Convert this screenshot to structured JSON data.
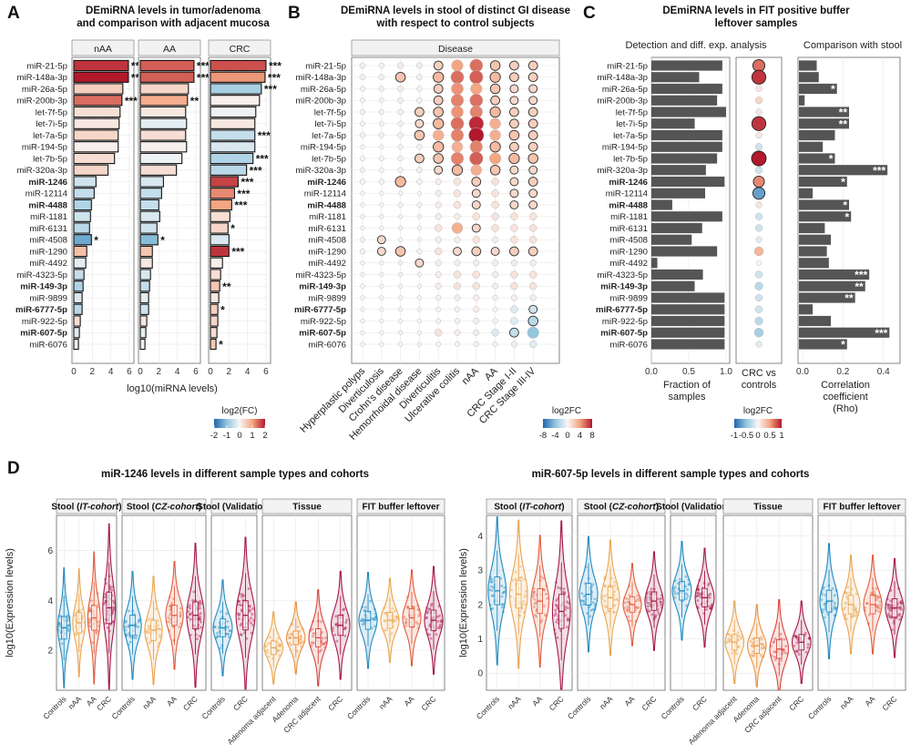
{
  "panel_labels": [
    "A",
    "B",
    "C",
    "D"
  ],
  "chart_data": [
    {
      "panel": "A",
      "type": "bar",
      "title": "DEmiRNA levels in tumor/adenoma\nand comparison with adjacent mucosa",
      "xlabel": "log10(miRNA levels)",
      "xlim": [
        0,
        6.3
      ],
      "xticks": [
        0,
        2,
        4,
        6
      ],
      "facets": [
        "nAA",
        "AA",
        "CRC"
      ],
      "categories": [
        "miR-21-5p",
        "miR-148a-3p",
        "miR-26a-5p",
        "miR-200b-3p",
        "let-7f-5p",
        "let-7i-5p",
        "let-7a-5p",
        "miR-194-5p",
        "let-7b-5p",
        "miR-320a-3p",
        "miR-1246",
        "miR-12114",
        "miR-4488",
        "miR-1181",
        "miR-6131",
        "miR-4508",
        "miR-1290",
        "miR-4492",
        "miR-4323-5p",
        "miR-149-3p",
        "miR-9899",
        "miR-6777-5p",
        "miR-922-5p",
        "miR-607-5p",
        "miR-6076"
      ],
      "bold_categories": [
        "miR-1246",
        "miR-4488",
        "miR-149-3p",
        "miR-6777-5p",
        "miR-607-5p"
      ],
      "series": [
        {
          "facet": "nAA",
          "values": [
            5.9,
            5.9,
            5.3,
            5.2,
            5.0,
            4.9,
            4.8,
            4.8,
            4.4,
            3.7,
            2.4,
            2.2,
            1.9,
            1.8,
            1.7,
            1.9,
            1.4,
            1.3,
            1.1,
            1.0,
            0.9,
            0.9,
            0.7,
            0.6,
            0.5
          ],
          "log2fc": [
            1.8,
            2.2,
            0.5,
            1.4,
            0.3,
            0.2,
            0.4,
            0.1,
            0.3,
            0.4,
            -0.4,
            -0.5,
            -0.7,
            -0.4,
            -0.6,
            -1.3,
            0.7,
            -0.2,
            -0.5,
            -0.7,
            -0.3,
            -0.6,
            0.3,
            -0.2,
            0.1
          ],
          "stars": [
            "***",
            "***",
            "",
            "***",
            "",
            "",
            "",
            "",
            "",
            "",
            "",
            "",
            "",
            "",
            "",
            "*",
            "",
            "",
            "",
            "",
            "",
            "",
            "",
            "",
            ""
          ]
        },
        {
          "facet": "AA",
          "values": [
            5.8,
            5.8,
            5.2,
            5.1,
            4.9,
            5.0,
            4.9,
            5.0,
            4.5,
            3.9,
            2.5,
            2.3,
            2.0,
            2.1,
            1.8,
            1.9,
            1.3,
            1.3,
            1.1,
            1.0,
            0.9,
            0.9,
            0.7,
            0.6,
            0.5
          ],
          "log2fc": [
            1.5,
            1.5,
            0.4,
            0.9,
            0.2,
            -0.2,
            0.3,
            0.1,
            -0.1,
            0.3,
            -0.3,
            -0.5,
            -0.5,
            -0.3,
            -0.4,
            -1.1,
            0.6,
            0.2,
            -0.3,
            -0.5,
            -0.2,
            -0.4,
            0.2,
            -0.2,
            0.1
          ],
          "stars": [
            "***",
            "***",
            "",
            "**",
            "",
            "",
            "",
            "",
            "",
            "",
            "",
            "",
            "",
            "",
            "",
            "*",
            "",
            "",
            "",
            "",
            "",
            "",
            "",
            "",
            ""
          ]
        },
        {
          "facet": "CRC",
          "values": [
            6.0,
            5.9,
            5.5,
            5.3,
            4.9,
            4.8,
            4.8,
            4.8,
            4.6,
            3.9,
            3.0,
            2.6,
            2.3,
            2.1,
            1.9,
            2.0,
            2.0,
            1.3,
            1.1,
            1.0,
            0.9,
            0.8,
            0.8,
            0.7,
            0.6
          ],
          "log2fc": [
            1.6,
            1.1,
            -0.8,
            0.1,
            -0.1,
            0.2,
            -0.5,
            -0.3,
            -0.7,
            -0.6,
            1.7,
            1.2,
            1.0,
            0.3,
            0.4,
            -0.3,
            1.8,
            0.1,
            0.3,
            0.6,
            0.2,
            0.5,
            0.4,
            0.3,
            0.6
          ],
          "stars": [
            "***",
            "***",
            "***",
            "",
            "",
            "",
            "***",
            "",
            "***",
            "***",
            "***",
            "***",
            "***",
            "",
            "*",
            "",
            "***",
            "",
            "",
            "**",
            "",
            "*",
            "",
            "",
            "*"
          ]
        }
      ],
      "legend": {
        "title": "log2(FC)",
        "ticks": [
          -2,
          -1,
          0,
          1,
          2
        ]
      }
    },
    {
      "panel": "B",
      "type": "scatter",
      "title": "DEmiRNA levels in stool of distinct GI disease\nwith respect to control subjects",
      "facet_label": "Disease",
      "categories": [
        "miR-21-5p",
        "miR-148a-3p",
        "miR-26a-5p",
        "miR-200b-3p",
        "let-7f-5p",
        "let-7i-5p",
        "let-7a-5p",
        "miR-194-5p",
        "let-7b-5p",
        "miR-320a-3p",
        "miR-1246",
        "miR-12114",
        "miR-4488",
        "miR-1181",
        "miR-6131",
        "miR-4508",
        "miR-1290",
        "miR-4492",
        "miR-4323-5p",
        "miR-149-3p",
        "miR-9899",
        "miR-6777-5p",
        "miR-922-5p",
        "miR-607-5p",
        "miR-6076"
      ],
      "diseases": [
        "Hyperplastic polyps",
        "Diverticulosis",
        "Crohn's disease",
        "Hemorrhoidal disease",
        "Diverticulitis",
        "Ulcerative colitis",
        "nAA",
        "AA",
        "CRC Stage I-II",
        "CRC Stage III-IV"
      ],
      "log2fc_matrix": [
        [
          0.4,
          0.3,
          0.6,
          0.5,
          2.0,
          4.0,
          5.5,
          2.5,
          2.0,
          2.0
        ],
        [
          0.4,
          0.4,
          2.5,
          0.4,
          3.0,
          5.5,
          6.0,
          3.0,
          2.0,
          2.0
        ],
        [
          0.2,
          0.3,
          0.5,
          0.3,
          2.0,
          4.5,
          4.0,
          2.5,
          1.5,
          1.5
        ],
        [
          0.2,
          0.2,
          0.4,
          0.4,
          2.0,
          5.0,
          5.5,
          2.0,
          1.5,
          1.5
        ],
        [
          0.2,
          0.2,
          0.4,
          2.0,
          2.5,
          4.5,
          5.0,
          3.0,
          2.0,
          2.0
        ],
        [
          0.2,
          0.2,
          0.3,
          1.5,
          3.0,
          5.5,
          7.5,
          3.5,
          2.0,
          2.0
        ],
        [
          0.3,
          0.3,
          0.4,
          2.5,
          3.5,
          5.0,
          8.0,
          3.5,
          2.5,
          2.0
        ],
        [
          0.1,
          0.1,
          0.2,
          0.3,
          3.0,
          3.5,
          5.0,
          3.0,
          2.0,
          2.0
        ],
        [
          0.2,
          0.2,
          0.3,
          2.0,
          2.5,
          5.0,
          6.0,
          4.0,
          3.0,
          2.5
        ],
        [
          0.2,
          0.2,
          0.3,
          0.4,
          1.5,
          3.0,
          3.5,
          2.5,
          1.5,
          1.5
        ],
        [
          0.3,
          0.3,
          3.0,
          0.3,
          0.5,
          1.0,
          2.0,
          1.0,
          1.5,
          2.0
        ],
        [
          0.1,
          0.1,
          0.1,
          0.1,
          0.5,
          1.0,
          1.5,
          1.0,
          1.5,
          1.5
        ],
        [
          0.1,
          0.1,
          0.2,
          0.2,
          0.5,
          1.0,
          1.5,
          1.0,
          1.5,
          1.5
        ],
        [
          0.1,
          0.1,
          0.1,
          0.1,
          0.5,
          0.5,
          1.0,
          1.0,
          1.0,
          1.0
        ],
        [
          0.1,
          0.1,
          0.1,
          0.1,
          1.0,
          3.5,
          1.5,
          1.0,
          1.0,
          1.0
        ],
        [
          0.2,
          1.5,
          0.1,
          0.1,
          0.5,
          0.5,
          1.0,
          0.5,
          1.0,
          1.0
        ],
        [
          0.3,
          1.5,
          2.5,
          0.3,
          1.0,
          1.5,
          2.0,
          1.5,
          2.0,
          2.0
        ],
        [
          0.1,
          0.1,
          0.1,
          1.5,
          0.5,
          0.5,
          0.5,
          0.5,
          0.5,
          0.5
        ],
        [
          0.1,
          0.1,
          0.1,
          0.1,
          0.5,
          1.0,
          1.0,
          0.5,
          1.0,
          1.0
        ],
        [
          0.1,
          0.1,
          0.1,
          0.1,
          0.5,
          1.0,
          1.0,
          0.5,
          1.0,
          1.0
        ],
        [
          0.1,
          0.1,
          0.1,
          0.1,
          0.3,
          0.5,
          0.5,
          0.3,
          0.5,
          0.5
        ],
        [
          0.1,
          0.1,
          0.1,
          0.1,
          0.2,
          0.3,
          0.5,
          0.2,
          -1.0,
          -1.5
        ],
        [
          0.1,
          0.1,
          0.1,
          0.1,
          0.2,
          0.3,
          0.5,
          0.3,
          -1.0,
          -2.5
        ],
        [
          0.1,
          0.1,
          0.1,
          0.1,
          1.0,
          0.5,
          -0.5,
          -1.0,
          -2.0,
          -4.0
        ],
        [
          0.1,
          0.1,
          0.1,
          0.1,
          0.2,
          0.2,
          0.3,
          0.2,
          -0.5,
          -1.0
        ]
      ],
      "legend": {
        "title": "log2FC",
        "ticks": [
          -8,
          -4,
          0,
          4,
          8
        ]
      }
    },
    {
      "panel": "C",
      "type": "bar",
      "title": "DEmiRNA levels in FIT positive buffer\nleftover samples",
      "subtitle_left": "Detection and diff. exp. analysis",
      "subtitle_right": "Comparison with stool",
      "categories": [
        "miR-21-5p",
        "miR-148a-3p",
        "miR-26a-5p",
        "miR-200b-3p",
        "let-7f-5p",
        "let-7i-5p",
        "let-7a-5p",
        "miR-194-5p",
        "let-7b-5p",
        "miR-320a-3p",
        "miR-1246",
        "miR-12114",
        "miR-4488",
        "miR-1181",
        "miR-6131",
        "miR-4508",
        "miR-1290",
        "miR-4492",
        "miR-4323-5p",
        "miR-149-3p",
        "miR-9899",
        "miR-6777-5p",
        "miR-922-5p",
        "miR-607-5p",
        "miR-6076"
      ],
      "fraction_of_samples": [
        0.95,
        0.64,
        0.95,
        0.88,
        1.0,
        0.58,
        0.95,
        0.95,
        0.88,
        0.73,
        0.98,
        0.72,
        0.28,
        0.95,
        0.68,
        0.54,
        0.88,
        0.08,
        0.69,
        0.58,
        0.98,
        0.98,
        0.98,
        0.98,
        0.98
      ],
      "fraction_xlabel": "Fraction of\nsamples",
      "fraction_xticks": [
        0.0,
        0.5,
        1.0
      ],
      "crc_vs_controls_log2fc": [
        0.7,
        0.9,
        0.1,
        0.2,
        0.1,
        0.9,
        0.1,
        -0.2,
        1.0,
        -0.2,
        0.6,
        -0.7,
        0.1,
        -0.2,
        -0.2,
        -0.1,
        0.4,
        0.0,
        -0.2,
        -0.3,
        -0.2,
        -0.2,
        -0.3,
        -0.4,
        -0.1
      ],
      "crc_vs_controls_xlabel": "CRC vs\ncontrols",
      "rho": [
        0.07,
        0.08,
        0.17,
        0.01,
        0.23,
        0.23,
        0.16,
        0.1,
        0.16,
        0.42,
        0.22,
        0.05,
        0.23,
        0.24,
        0.11,
        0.14,
        0.12,
        0.13,
        0.33,
        0.31,
        0.26,
        0.05,
        0.14,
        0.43,
        0.22
      ],
      "rho_stars": [
        "",
        "",
        "*",
        "",
        "**",
        "**",
        "",
        "",
        "*",
        "***",
        "*",
        "",
        "*",
        "*",
        "",
        "",
        "",
        "",
        "***",
        "**",
        "**",
        "",
        "",
        "***",
        "*"
      ],
      "rho_xlabel": "Correlation\ncoefficient\n(Rho)",
      "rho_xticks": [
        0.0,
        0.2,
        0.4
      ],
      "legend": {
        "title": "log2FC",
        "ticks": [
          -1,
          -0.5,
          0,
          0.5,
          1
        ]
      }
    },
    {
      "panel": "D-left",
      "type": "violin",
      "title": "miR-1246 levels in different sample types and cohorts",
      "ylabel": "log10(Expression levels)",
      "yticks": [
        2,
        4,
        6
      ],
      "ylim": [
        0.4,
        7.4
      ],
      "facets": [
        {
          "label_pre": "Stool (",
          "label_it": "IT-cohort",
          "label_post": ")",
          "groups": [
            "Controls",
            "nAA",
            "AA",
            "CRC"
          ],
          "medians": [
            2.9,
            3.1,
            3.3,
            3.7
          ],
          "spreads": [
            1.0,
            0.9,
            1.1,
            1.4
          ]
        },
        {
          "label_pre": "Stool (",
          "label_it": "CZ-cohort",
          "label_post": ")",
          "groups": [
            "Controls",
            "nAA",
            "AA",
            "CRC"
          ],
          "medians": [
            3.0,
            2.8,
            3.4,
            3.4
          ],
          "spreads": [
            0.9,
            0.9,
            0.9,
            1.2
          ]
        },
        {
          "label_pre": "Stool (Validation)",
          "label_it": "",
          "label_post": "",
          "groups": [
            "Controls",
            "CRC"
          ],
          "medians": [
            2.9,
            3.4
          ],
          "spreads": [
            0.8,
            1.3
          ]
        },
        {
          "label_pre": "Tissue",
          "label_it": "",
          "label_post": "",
          "groups": [
            "Adenoma adjacent",
            "Adenoma",
            "CRC adjacent",
            "CRC"
          ],
          "medians": [
            2.1,
            2.5,
            2.5,
            3.0
          ],
          "spreads": [
            0.6,
            0.6,
            0.8,
            0.9
          ]
        },
        {
          "label_pre": "FIT buffer leftover",
          "label_it": "",
          "label_post": "",
          "groups": [
            "Controls",
            "nAA",
            "AA",
            "CRC"
          ],
          "medians": [
            3.2,
            3.2,
            3.3,
            3.2
          ],
          "spreads": [
            0.8,
            0.7,
            0.8,
            0.9
          ]
        }
      ]
    },
    {
      "panel": "D-right",
      "type": "violin",
      "title": "miR-607-5p levels in different sample types and cohorts",
      "ylabel": "log10(Expression levels)",
      "yticks": [
        0,
        1,
        2,
        3,
        4
      ],
      "ylim": [
        -0.5,
        4.6
      ],
      "facets": [
        {
          "label_pre": "Stool (",
          "label_it": "IT-cohort",
          "label_post": ")",
          "groups": [
            "Controls",
            "nAA",
            "AA",
            "CRC"
          ],
          "medians": [
            2.4,
            2.3,
            2.1,
            1.8
          ],
          "spreads": [
            0.9,
            0.9,
            0.8,
            1.1
          ]
        },
        {
          "label_pre": "Stool (",
          "label_it": "CZ-cohort",
          "label_post": ")",
          "groups": [
            "Controls",
            "nAA",
            "AA",
            "CRC"
          ],
          "medians": [
            2.3,
            2.2,
            2.0,
            2.1
          ],
          "spreads": [
            0.7,
            0.7,
            0.5,
            0.6
          ]
        },
        {
          "label_pre": "Stool (Validation)",
          "label_it": "",
          "label_post": "",
          "groups": [
            "Controls",
            "CRC"
          ],
          "medians": [
            2.4,
            2.2
          ],
          "spreads": [
            0.6,
            0.6
          ]
        },
        {
          "label_pre": "Tissue",
          "label_it": "",
          "label_post": "",
          "groups": [
            "Adenoma adjacent",
            "Adenoma",
            "CRC adjacent",
            "CRC"
          ],
          "medians": [
            0.9,
            0.8,
            0.7,
            0.9
          ],
          "spreads": [
            0.5,
            0.5,
            0.6,
            0.5
          ]
        },
        {
          "label_pre": "FIT buffer leftover",
          "label_it": "",
          "label_post": "",
          "groups": [
            "Controls",
            "nAA",
            "AA",
            "CRC"
          ],
          "medians": [
            2.1,
            2.0,
            2.0,
            1.9
          ],
          "spreads": [
            0.7,
            0.6,
            0.6,
            0.6
          ]
        }
      ]
    }
  ],
  "colors": {
    "negative": "#2166ac",
    "neutral": "#f7f7f7",
    "positive": "#b2182b",
    "grey_bar": "#555555",
    "violin_groups": [
      "#1f8ac0",
      "#eaa54f",
      "#e35c3c",
      "#a6174a"
    ],
    "violin_tissue": [
      "#eaa54f",
      "#e8903e",
      "#d9453b",
      "#a6174a"
    ]
  }
}
